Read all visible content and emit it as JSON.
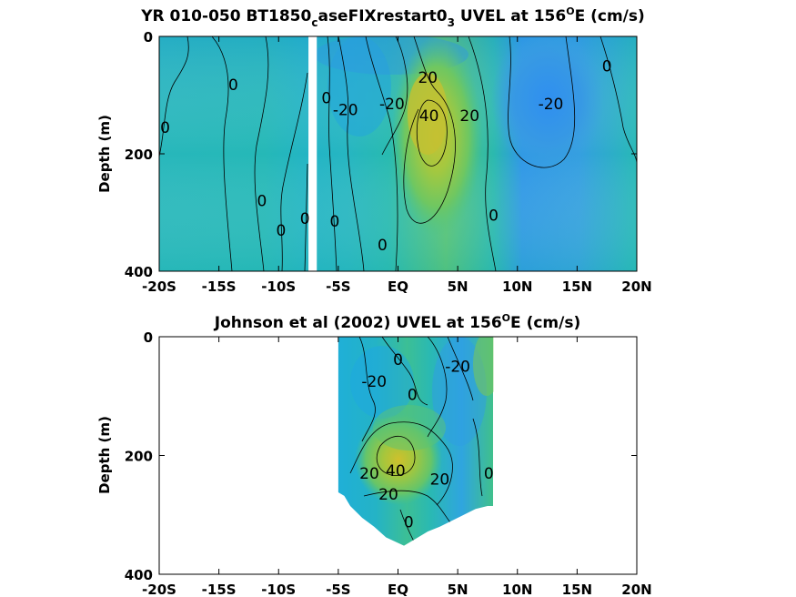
{
  "chart_data": [
    {
      "type": "heatmap",
      "title": {
        "prefix": "YR 010-050 BT1850",
        "sub1": "c",
        "mid": "aseFIXrestart0",
        "sub2": "3",
        "var": " UVEL at 156",
        "sup": "O",
        "suffix": "E (cm/s)"
      },
      "xlabel": "",
      "ylabel": "Depth (m)",
      "xlim": [
        -20,
        20
      ],
      "ylim": [
        0,
        400
      ],
      "xticks": [
        {
          "value": -20,
          "label": "-20S"
        },
        {
          "value": -15,
          "label": "-15S"
        },
        {
          "value": -10,
          "label": "-10S"
        },
        {
          "value": -5,
          "label": "-5S"
        },
        {
          "value": 0,
          "label": "EQ"
        },
        {
          "value": 5,
          "label": "5N"
        },
        {
          "value": 10,
          "label": "10N"
        },
        {
          "value": 15,
          "label": "15N"
        },
        {
          "value": 20,
          "label": "20N"
        }
      ],
      "yticks": [
        {
          "value": 0,
          "label": "0"
        },
        {
          "value": 200,
          "label": "200"
        },
        {
          "value": 400,
          "label": "400"
        }
      ],
      "missing_band": [
        -7.5,
        -6.8
      ],
      "contour_labels": [
        {
          "text": "0",
          "lat": -19.5,
          "depth": 155
        },
        {
          "text": "0",
          "lat": -13.8,
          "depth": 82
        },
        {
          "text": "0",
          "lat": -11.4,
          "depth": 280
        },
        {
          "text": "0",
          "lat": -9.8,
          "depth": 330
        },
        {
          "text": "0",
          "lat": -7.8,
          "depth": 310
        },
        {
          "text": "0",
          "lat": -6.0,
          "depth": 105
        },
        {
          "text": "0",
          "lat": -5.3,
          "depth": 315
        },
        {
          "text": "-20",
          "lat": -4.4,
          "depth": 125
        },
        {
          "text": "-20",
          "lat": -0.5,
          "depth": 115
        },
        {
          "text": "0",
          "lat": -1.3,
          "depth": 355
        },
        {
          "text": "20",
          "lat": 2.5,
          "depth": 70
        },
        {
          "text": "40",
          "lat": 2.6,
          "depth": 135
        },
        {
          "text": "20",
          "lat": 6.0,
          "depth": 135
        },
        {
          "text": "0",
          "lat": 8.0,
          "depth": 305
        },
        {
          "text": "-20",
          "lat": 12.8,
          "depth": 115
        },
        {
          "text": "0",
          "lat": 17.5,
          "depth": 50
        }
      ],
      "colormap": {
        "-30": "#2f8fe8",
        "-20": "#3aa0e4",
        "-10": "#22b1d4",
        "0": "#28bbb0",
        "10": "#47c18d",
        "20": "#6cc765",
        "30": "#9cc944",
        "40": "#c1c236",
        "50": "#d8be2a"
      }
    },
    {
      "type": "heatmap",
      "title": {
        "prefix": "Johnson et al (2002) UVEL at 156",
        "sup": "O",
        "suffix": "E (cm/s)"
      },
      "xlabel": "",
      "ylabel": "Depth (m)",
      "xlim": [
        -20,
        20
      ],
      "ylim": [
        0,
        400
      ],
      "xticks": [
        {
          "value": -20,
          "label": "-20S"
        },
        {
          "value": -15,
          "label": "-15S"
        },
        {
          "value": -10,
          "label": "-10S"
        },
        {
          "value": -5,
          "label": "-5S"
        },
        {
          "value": 0,
          "label": "EQ"
        },
        {
          "value": 5,
          "label": "5N"
        },
        {
          "value": 10,
          "label": "10N"
        },
        {
          "value": 15,
          "label": "15N"
        },
        {
          "value": 20,
          "label": "20N"
        }
      ],
      "yticks": [
        {
          "value": 0,
          "label": "0"
        },
        {
          "value": 200,
          "label": "200"
        },
        {
          "value": 400,
          "label": "400"
        }
      ],
      "data_extent": [
        -5,
        8
      ],
      "bottom_depth": [
        {
          "lat": -5,
          "depth": 262
        },
        {
          "lat": -4.5,
          "depth": 268
        },
        {
          "lat": -4,
          "depth": 285
        },
        {
          "lat": -3,
          "depth": 305
        },
        {
          "lat": -2,
          "depth": 320
        },
        {
          "lat": -1,
          "depth": 338
        },
        {
          "lat": 0.5,
          "depth": 352
        },
        {
          "lat": 1.5,
          "depth": 340
        },
        {
          "lat": 2.5,
          "depth": 328
        },
        {
          "lat": 3.5,
          "depth": 320
        },
        {
          "lat": 4.5,
          "depth": 310
        },
        {
          "lat": 5.5,
          "depth": 300
        },
        {
          "lat": 6.5,
          "depth": 290
        },
        {
          "lat": 7.5,
          "depth": 285
        },
        {
          "lat": 8,
          "depth": 285
        }
      ],
      "contour_labels": [
        {
          "text": "0",
          "lat": 0,
          "depth": 38
        },
        {
          "text": "-20",
          "lat": -2.0,
          "depth": 75
        },
        {
          "text": "0",
          "lat": 1.2,
          "depth": 97
        },
        {
          "text": "-20",
          "lat": 5.0,
          "depth": 50
        },
        {
          "text": "40",
          "lat": -0.2,
          "depth": 225
        },
        {
          "text": "20",
          "lat": -2.4,
          "depth": 230
        },
        {
          "text": "20",
          "lat": -0.8,
          "depth": 265
        },
        {
          "text": "20",
          "lat": 3.5,
          "depth": 240
        },
        {
          "text": "0",
          "lat": 7.6,
          "depth": 230
        },
        {
          "text": "0",
          "lat": 0.9,
          "depth": 312
        }
      ]
    }
  ]
}
